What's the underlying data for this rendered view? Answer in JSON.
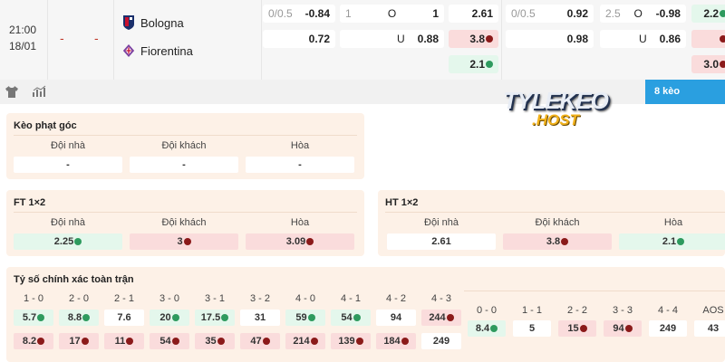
{
  "match": {
    "time": "21:00",
    "date": "18/01",
    "score_home": "-",
    "score_away": "-",
    "home": "Bologna",
    "away": "Fiorentina"
  },
  "odds": {
    "ft_handicap": {
      "line": "0/0.5",
      "home": "-0.84",
      "away": "0.72"
    },
    "ft_ou": {
      "line": "1",
      "over_label": "O",
      "over": "1",
      "under_label": "U",
      "under": "0.88"
    },
    "ft_1x2": [
      {
        "v": "2.61",
        "s": "none"
      },
      {
        "v": "3.8",
        "s": "down"
      },
      {
        "v": "2.1",
        "s": "up"
      }
    ],
    "ht_handicap": {
      "line": "0/0.5",
      "home": "0.92",
      "away": "0.98"
    },
    "ht_ou": {
      "line": "2.5",
      "over_label": "O",
      "over": "-0.98",
      "under_label": "U",
      "under": "0.86"
    },
    "ht_1x2": [
      {
        "v": "2.2",
        "s": "up"
      },
      {
        "v": "",
        "s": "down"
      },
      {
        "v": "3.0",
        "s": "down"
      }
    ]
  },
  "toolbar": {
    "icons": [
      "shirt-icon",
      "stats-chart-icon"
    ],
    "more_label": "8 kèo",
    "accent": "#2a9fe0"
  },
  "logo": {
    "line1": "TYLEKEO",
    "line2": ".HOST"
  },
  "corner": {
    "title": "Kèo phạt góc",
    "labels": [
      "Đội nhà",
      "Đội khách",
      "Hòa"
    ],
    "values": [
      {
        "v": "-",
        "s": "none"
      },
      {
        "v": "-",
        "s": "none"
      },
      {
        "v": "-",
        "s": "none"
      }
    ]
  },
  "ft12": {
    "title": "FT 1×2",
    "labels": [
      "Đội nhà",
      "Đội khách",
      "Hòa"
    ],
    "values": [
      {
        "v": "2.25",
        "s": "up"
      },
      {
        "v": "3",
        "s": "down"
      },
      {
        "v": "3.09",
        "s": "down"
      }
    ]
  },
  "ht12": {
    "title": "HT 1×2",
    "labels": [
      "Đội nhà",
      "Đội khách",
      "Hòa"
    ],
    "values": [
      {
        "v": "2.61",
        "s": "none"
      },
      {
        "v": "3.8",
        "s": "down"
      },
      {
        "v": "2.1",
        "s": "up"
      }
    ]
  },
  "correct_score": {
    "title": "Tỷ số chính xác toàn trận",
    "left": [
      {
        "score": "1 - 0",
        "home": {
          "v": "5.7",
          "s": "up"
        },
        "away": {
          "v": "8.2",
          "s": "down"
        }
      },
      {
        "score": "2 - 0",
        "home": {
          "v": "8.8",
          "s": "up"
        },
        "away": {
          "v": "17",
          "s": "down"
        }
      },
      {
        "score": "2 - 1",
        "home": {
          "v": "7.6",
          "s": "none"
        },
        "away": {
          "v": "11",
          "s": "down"
        }
      },
      {
        "score": "3 - 0",
        "home": {
          "v": "20",
          "s": "up"
        },
        "away": {
          "v": "54",
          "s": "down"
        }
      },
      {
        "score": "3 - 1",
        "home": {
          "v": "17.5",
          "s": "up"
        },
        "away": {
          "v": "35",
          "s": "down"
        }
      },
      {
        "score": "3 - 2",
        "home": {
          "v": "31",
          "s": "none"
        },
        "away": {
          "v": "47",
          "s": "down"
        }
      },
      {
        "score": "4 - 0",
        "home": {
          "v": "59",
          "s": "up"
        },
        "away": {
          "v": "214",
          "s": "down"
        }
      },
      {
        "score": "4 - 1",
        "home": {
          "v": "54",
          "s": "up"
        },
        "away": {
          "v": "139",
          "s": "down"
        }
      },
      {
        "score": "4 - 2",
        "home": {
          "v": "94",
          "s": "none"
        },
        "away": {
          "v": "184",
          "s": "down"
        }
      },
      {
        "score": "4 - 3",
        "home": {
          "v": "244",
          "s": "down"
        },
        "away": {
          "v": "249",
          "s": "none"
        }
      }
    ],
    "draws": [
      {
        "score": "0 - 0",
        "v": "8.4",
        "s": "up"
      },
      {
        "score": "1 - 1",
        "v": "5",
        "s": "none"
      },
      {
        "score": "2 - 2",
        "v": "15",
        "s": "down"
      },
      {
        "score": "3 - 3",
        "v": "94",
        "s": "down"
      },
      {
        "score": "4 - 4",
        "v": "249",
        "s": "none"
      },
      {
        "score": "AOS",
        "v": "43",
        "s": "none"
      }
    ]
  }
}
